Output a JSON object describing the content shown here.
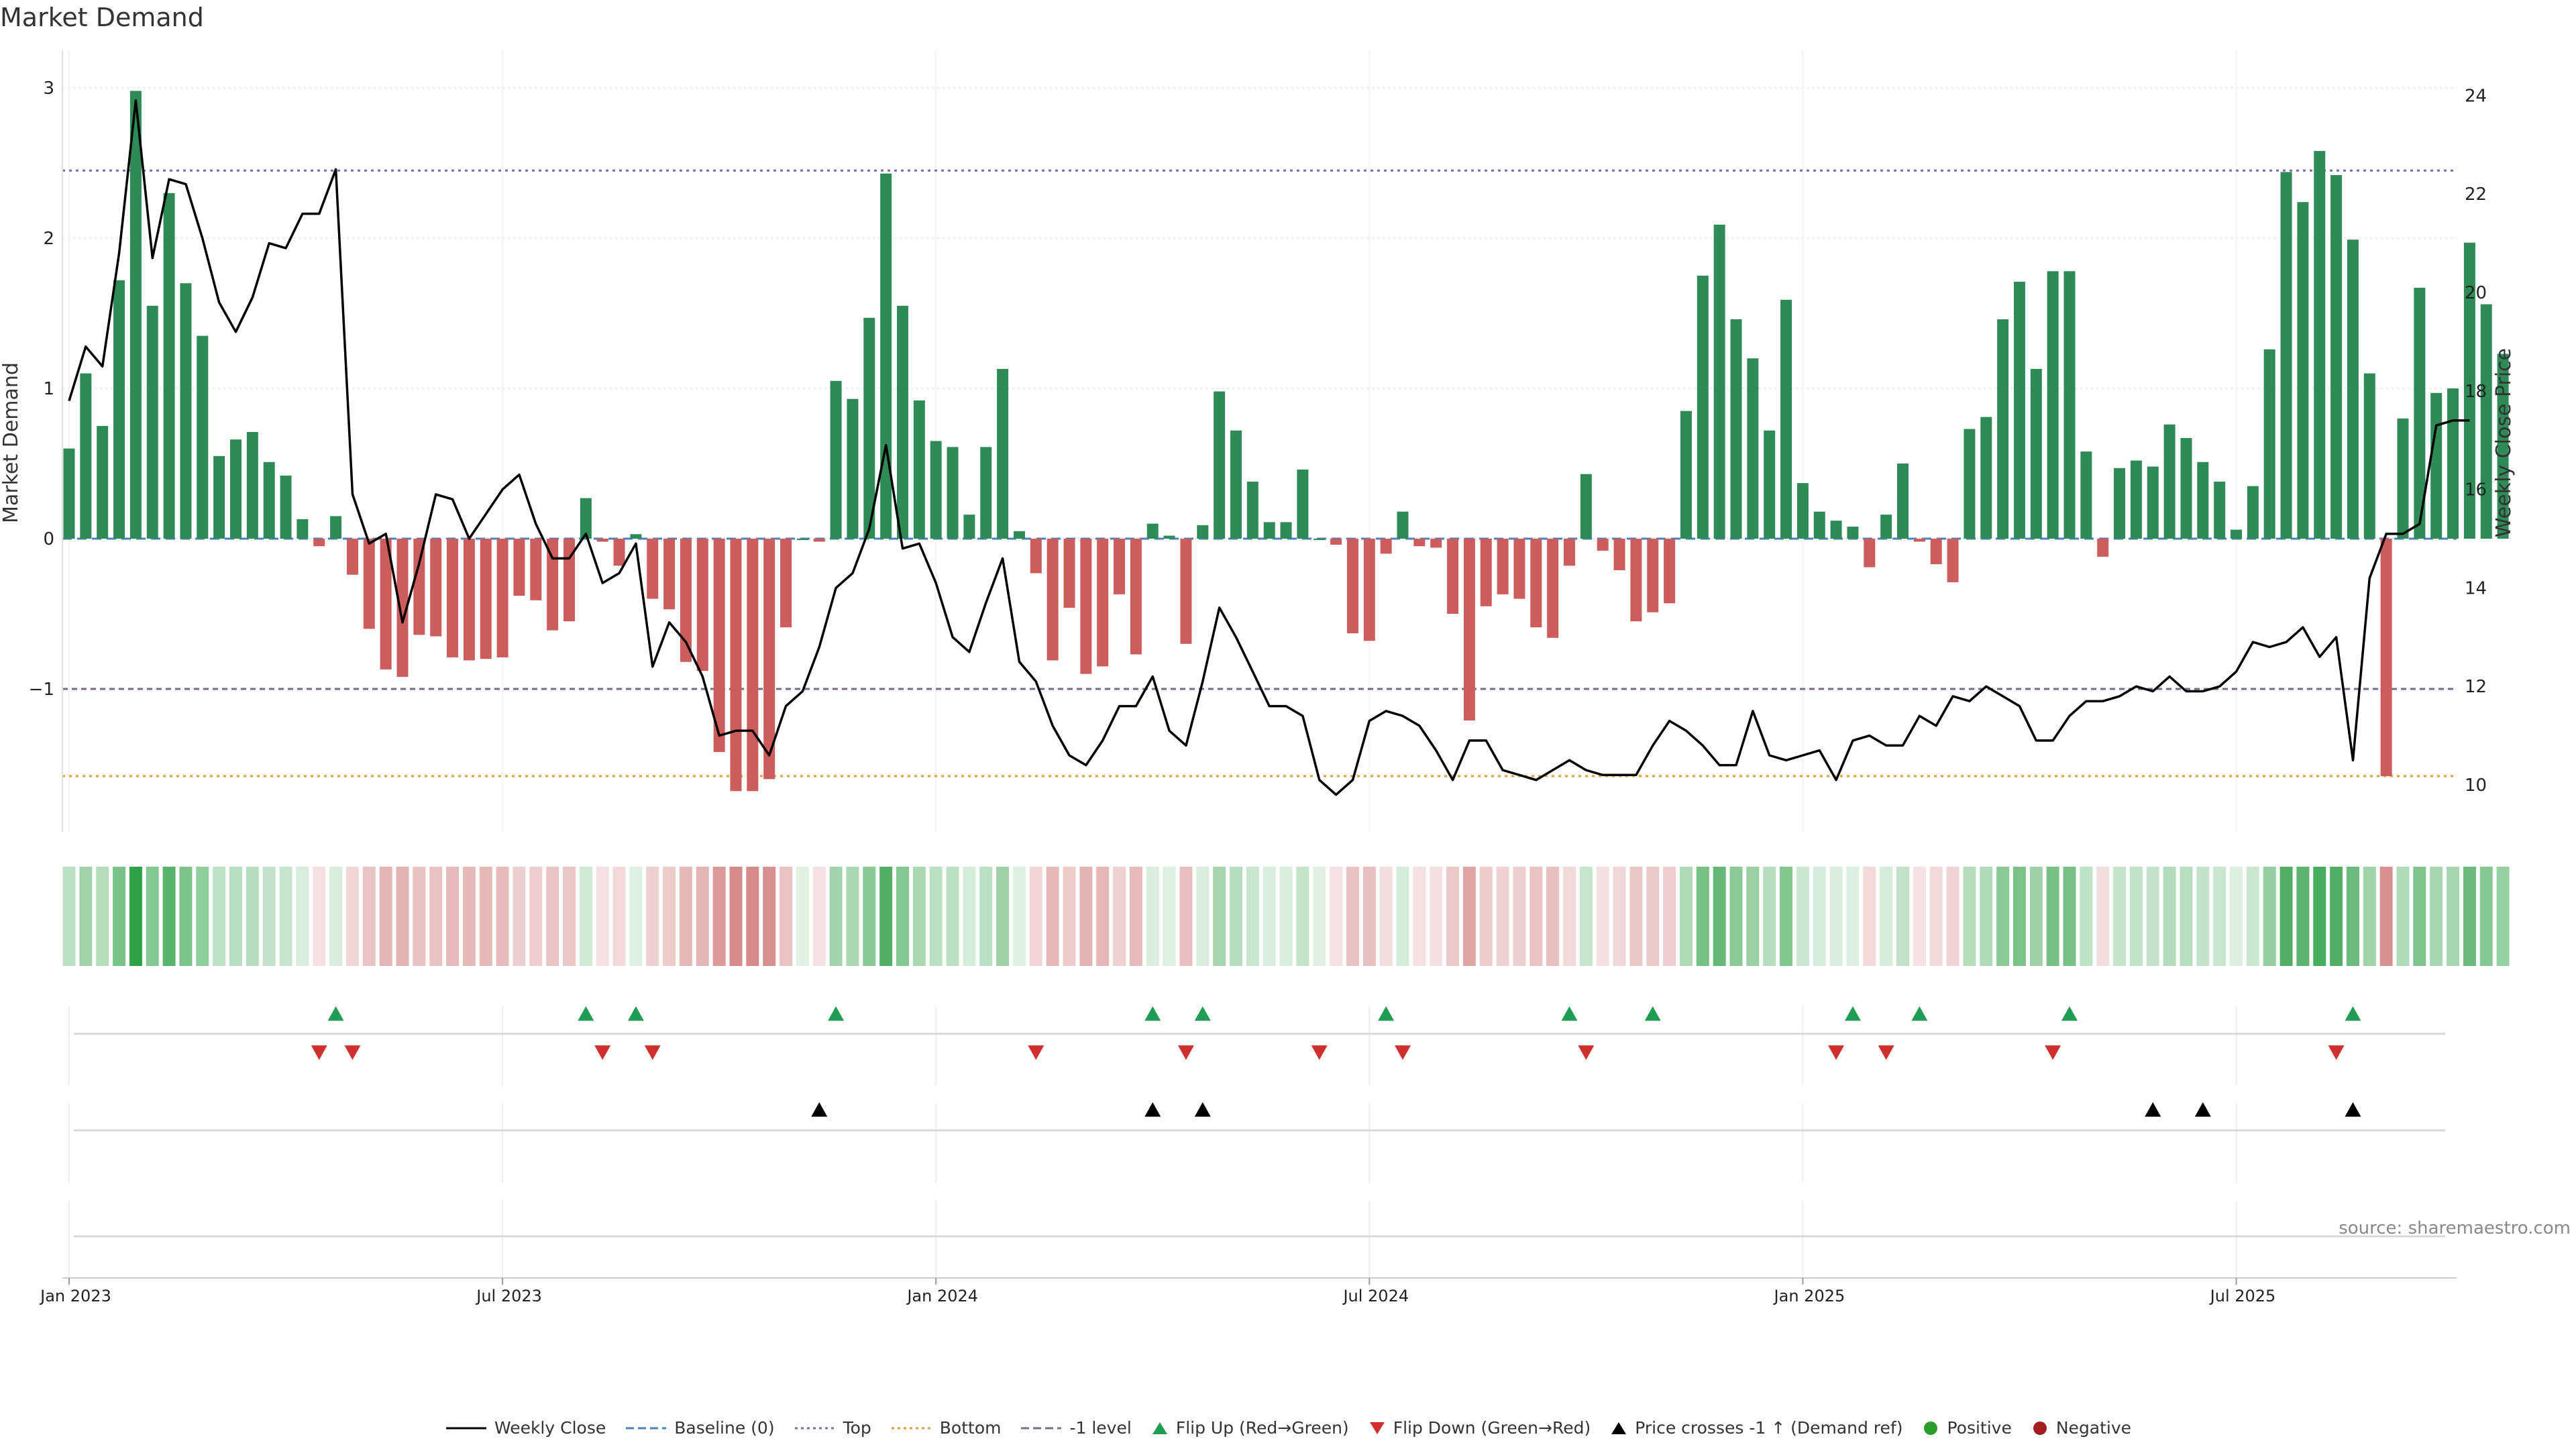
{
  "title": "Market Demand",
  "source": "source: sharemaestro.com",
  "colors": {
    "positive": "#2e8b57",
    "negative": "#cd5c5c",
    "price": "#000000",
    "baseline": "#4a7fc1",
    "top": "#7b68a6",
    "bottom": "#e0a030",
    "neg1": "#7a6a8a",
    "flip_up": "#1f9d55",
    "flip_down": "#d02f2f",
    "cross": "#000000",
    "dot_positive": "#2a9d2a",
    "dot_negative": "#a31f1f"
  },
  "legend": [
    {
      "label": "Weekly Close",
      "kind": "line-solid",
      "color": "#000000"
    },
    {
      "label": "Baseline (0)",
      "kind": "line-dashed",
      "color": "#4a7fc1"
    },
    {
      "label": "Top",
      "kind": "line-dotted",
      "color": "#7b68a6"
    },
    {
      "label": "Bottom",
      "kind": "line-dotted",
      "color": "#e0a030"
    },
    {
      "label": "-1 level",
      "kind": "line-dashed",
      "color": "#7a6a8a"
    },
    {
      "label": "Flip Up (Red→Green)",
      "kind": "tri-up",
      "color": "#1f9d55"
    },
    {
      "label": "Flip Down (Green→Red)",
      "kind": "tri-down",
      "color": "#d02f2f"
    },
    {
      "label": "Price crosses -1 ↑ (Demand ref)",
      "kind": "tri-up",
      "color": "#000000"
    },
    {
      "label": "Positive",
      "kind": "dot",
      "color": "#2a9d2a"
    },
    {
      "label": "Negative",
      "kind": "dot",
      "color": "#a31f1f"
    }
  ],
  "chart_data": {
    "type": "bar",
    "xlabel": "",
    "ylabel": "Market Demand",
    "ylabel_right": "Weekly Close Price",
    "ylim": [
      -1.95,
      3.0
    ],
    "ylim_right": [
      9.4,
      24.2
    ],
    "yticks_left": [
      -1,
      0,
      1,
      2,
      3
    ],
    "yticks_left_labels": [
      "−1",
      "0",
      "1",
      "2",
      "3"
    ],
    "yticks_right": [
      10,
      12,
      14,
      16,
      18,
      20,
      22,
      24
    ],
    "xticks": [
      {
        "week": 0,
        "label": "Jan 2023"
      },
      {
        "week": 26,
        "label": "Jul 2023"
      },
      {
        "week": 52,
        "label": "Jan 2024"
      },
      {
        "week": 78,
        "label": "Jul 2024"
      },
      {
        "week": 104,
        "label": "Jan 2025"
      },
      {
        "week": 130,
        "label": "Jul 2025"
      }
    ],
    "reference_lines": {
      "baseline": 0,
      "top": 2.45,
      "bottom": -1.58,
      "neg1": -1
    },
    "demand": [
      0.6,
      1.1,
      0.75,
      1.72,
      2.98,
      1.55,
      2.3,
      1.7,
      1.35,
      0.55,
      0.66,
      0.71,
      0.51,
      0.42,
      0.13,
      -0.05,
      0.15,
      -0.24,
      -0.6,
      -0.87,
      -0.92,
      -0.64,
      -0.65,
      -0.79,
      -0.81,
      -0.8,
      -0.79,
      -0.38,
      -0.41,
      -0.61,
      -0.55,
      0.27,
      -0.02,
      -0.18,
      0.03,
      -0.4,
      -0.47,
      -0.82,
      -0.88,
      -1.42,
      -1.68,
      -1.68,
      -1.6,
      -0.59,
      0,
      -0.02,
      1.05,
      0.93,
      1.47,
      2.43,
      1.55,
      0.92,
      0.65,
      0.61,
      0.16,
      0.61,
      1.13,
      0.05,
      -0.23,
      -0.81,
      -0.46,
      -0.9,
      -0.85,
      -0.37,
      -0.77,
      0.1,
      0.02,
      -0.7,
      0.09,
      0.98,
      0.72,
      0.38,
      0.11,
      0.11,
      0.46,
      0,
      -0.04,
      -0.63,
      -0.68,
      -0.1,
      0.18,
      -0.05,
      -0.06,
      -0.5,
      -1.21,
      -0.45,
      -0.37,
      -0.4,
      -0.59,
      -0.66,
      -0.18,
      0.43,
      -0.08,
      -0.21,
      -0.55,
      -0.49,
      -0.43,
      0.85,
      1.75,
      2.09,
      1.46,
      1.2,
      0.72,
      1.59,
      0.37,
      0.18,
      0.12,
      0.08,
      -0.19,
      0.16,
      0.5,
      -0.02,
      -0.17,
      -0.29,
      0.73,
      0.81,
      1.46,
      1.71,
      1.13,
      1.78,
      1.78,
      0.58,
      -0.12,
      0.47,
      0.52,
      0.48,
      0.76,
      0.67,
      0.51,
      0.38,
      0.06,
      0.35,
      1.26,
      2.44,
      2.24,
      2.58,
      2.42,
      1.99,
      1.1,
      -1.58,
      0.8,
      1.67,
      0.97,
      1.0,
      1.97,
      1.56,
      1.23
    ],
    "price": [
      17.8,
      18.9,
      18.5,
      20.8,
      23.9,
      20.7,
      22.3,
      22.2,
      21.1,
      19.8,
      19.2,
      19.9,
      21.0,
      20.9,
      21.6,
      21.6,
      22.5,
      15.9,
      14.9,
      15.1,
      13.3,
      14.5,
      15.9,
      15.8,
      15.0,
      15.5,
      16.0,
      16.3,
      15.3,
      14.6,
      14.6,
      15.1,
      14.1,
      14.3,
      14.9,
      12.4,
      13.3,
      12.9,
      12.2,
      11.0,
      11.1,
      11.1,
      10.6,
      11.6,
      11.9,
      12.8,
      14.0,
      14.3,
      15.2,
      16.9,
      14.8,
      14.9,
      14.1,
      13.0,
      12.7,
      13.7,
      14.6,
      12.5,
      12.1,
      11.2,
      10.6,
      10.4,
      10.9,
      11.6,
      11.6,
      12.2,
      11.1,
      10.8,
      12.1,
      13.6,
      13.0,
      12.3,
      11.6,
      11.6,
      11.4,
      10.1,
      9.8,
      10.1,
      11.3,
      11.5,
      11.4,
      11.2,
      10.7,
      10.1,
      10.9,
      10.9,
      10.3,
      10.2,
      10.1,
      10.3,
      10.5,
      10.3,
      10.2,
      10.2,
      10.2,
      10.8,
      11.3,
      11.1,
      10.8,
      10.4,
      10.4,
      11.5,
      10.6,
      10.5,
      10.6,
      10.7,
      10.1,
      10.9,
      11.0,
      10.8,
      10.8,
      11.4,
      11.2,
      11.8,
      11.7,
      12.0,
      11.8,
      11.6,
      10.9,
      10.9,
      11.4,
      11.7,
      11.7,
      11.8,
      12.0,
      11.9,
      12.2,
      11.9,
      11.9,
      12.0,
      12.3,
      12.9,
      12.8,
      12.9,
      13.2,
      12.6,
      13.0,
      10.5,
      14.2,
      15.1,
      15.1,
      15.3,
      17.3,
      17.4,
      17.4
    ],
    "heat": [
      0.3,
      0.4,
      0.35,
      0.5,
      0.95,
      0.55,
      0.7,
      0.6,
      0.45,
      0.3,
      0.3,
      0.3,
      0.25,
      0.25,
      0.2,
      0.15,
      0.15,
      0.2,
      0.35,
      0.4,
      0.4,
      0.35,
      0.35,
      0.4,
      0.4,
      0.4,
      0.4,
      0.3,
      0.3,
      0.35,
      0.35,
      0.2,
      0.15,
      0.2,
      0.15,
      0.3,
      0.3,
      0.4,
      0.45,
      0.6,
      0.7,
      0.7,
      0.7,
      0.35,
      0.15,
      0.15,
      0.45,
      0.45,
      0.55,
      0.85,
      0.55,
      0.45,
      0.35,
      0.35,
      0.2,
      0.3,
      0.45,
      0.15,
      0.2,
      0.4,
      0.3,
      0.45,
      0.45,
      0.3,
      0.4,
      0.2,
      0.15,
      0.4,
      0.2,
      0.45,
      0.4,
      0.3,
      0.2,
      0.2,
      0.3,
      0.15,
      0.15,
      0.35,
      0.4,
      0.2,
      0.2,
      0.15,
      0.15,
      0.3,
      0.55,
      0.3,
      0.3,
      0.3,
      0.35,
      0.35,
      0.2,
      0.3,
      0.15,
      0.2,
      0.3,
      0.3,
      0.3,
      0.45,
      0.65,
      0.7,
      0.55,
      0.5,
      0.35,
      0.6,
      0.25,
      0.2,
      0.2,
      0.2,
      0.2,
      0.2,
      0.3,
      0.15,
      0.2,
      0.25,
      0.4,
      0.4,
      0.55,
      0.6,
      0.45,
      0.6,
      0.6,
      0.3,
      0.2,
      0.3,
      0.3,
      0.3,
      0.35,
      0.35,
      0.3,
      0.25,
      0.2,
      0.25,
      0.5,
      0.85,
      0.8,
      0.9,
      0.85,
      0.7,
      0.45,
      0.7,
      0.4,
      0.6,
      0.4,
      0.4,
      0.65,
      0.55,
      0.5
    ],
    "flip_up_weeks": [
      16,
      31,
      34,
      46,
      65,
      68,
      79,
      90,
      95,
      107,
      111,
      120,
      137
    ],
    "flip_down_weeks": [
      15,
      17,
      32,
      35,
      58,
      67,
      75,
      80,
      91,
      106,
      109,
      119,
      136
    ],
    "cross_up_weeks": [
      45,
      65,
      68,
      125,
      128,
      137
    ]
  }
}
